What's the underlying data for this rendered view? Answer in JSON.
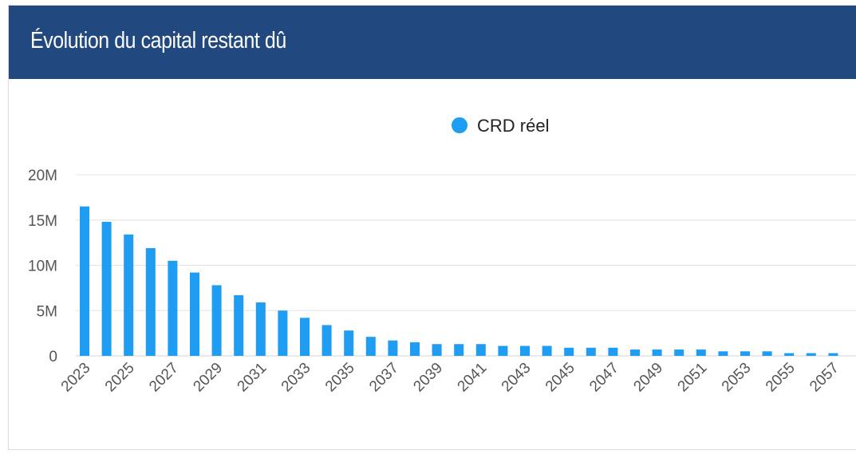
{
  "header": {
    "title": "Évolution du capital restant dû"
  },
  "colors": {
    "header_bg": "#22497f",
    "bar": "#1e9df2",
    "grid": "#e3e3e3"
  },
  "chart_data": {
    "type": "bar",
    "legend": {
      "label": "CRD réel",
      "placement": "top-center",
      "marker": "circle"
    },
    "yticks": [
      "0",
      "5M",
      "10M",
      "15M",
      "20M"
    ],
    "ylim": [
      0,
      20000000
    ],
    "grid": true,
    "categories": [
      2023,
      2024,
      2025,
      2026,
      2027,
      2028,
      2029,
      2030,
      2031,
      2032,
      2033,
      2034,
      2035,
      2036,
      2037,
      2038,
      2039,
      2040,
      2041,
      2042,
      2043,
      2044,
      2045,
      2046,
      2047,
      2048,
      2049,
      2050,
      2051,
      2052,
      2053,
      2054,
      2055,
      2056,
      2057
    ],
    "xtick_labels": [
      "2023",
      "2025",
      "2027",
      "2029",
      "2031",
      "2033",
      "2035",
      "2037",
      "2039",
      "2041",
      "2043",
      "2045",
      "2047",
      "2049",
      "2051",
      "2053",
      "2055",
      "2057"
    ],
    "series": [
      {
        "name": "CRD réel",
        "values": [
          16500000,
          14800000,
          13400000,
          11900000,
          10500000,
          9200000,
          7800000,
          6700000,
          5900000,
          5000000,
          4200000,
          3400000,
          2800000,
          2100000,
          1700000,
          1500000,
          1300000,
          1300000,
          1300000,
          1100000,
          1100000,
          1100000,
          900000,
          900000,
          900000,
          700000,
          700000,
          700000,
          700000,
          500000,
          500000,
          500000,
          300000,
          300000,
          300000
        ]
      }
    ]
  }
}
